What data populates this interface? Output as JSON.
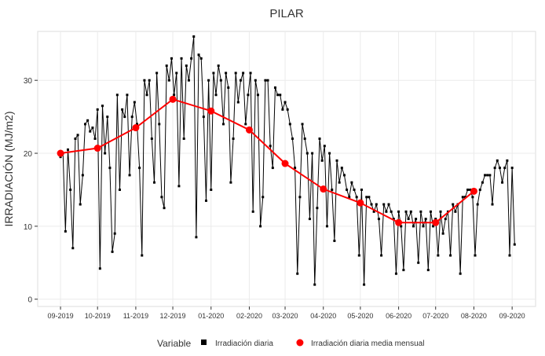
{
  "chart_data": {
    "type": "line",
    "title": "PILAR",
    "y_label": "IRRADIACIÓN (MJ/m2)",
    "legend_title": "Variable",
    "grid": true,
    "legend_position": "bottom",
    "xlim": [
      -18.5,
      385
    ],
    "ylim": [
      -1,
      36.7
    ],
    "xticks": [
      {
        "value": 0,
        "label": "09-2019"
      },
      {
        "value": 30,
        "label": "10-2019"
      },
      {
        "value": 61,
        "label": "11-2019"
      },
      {
        "value": 91,
        "label": "12-2019"
      },
      {
        "value": 122,
        "label": "01-2020"
      },
      {
        "value": 153,
        "label": "02-2020"
      },
      {
        "value": 182,
        "label": "03-2020"
      },
      {
        "value": 213,
        "label": "04-2020"
      },
      {
        "value": 243,
        "label": "05-2020"
      },
      {
        "value": 274,
        "label": "06-2020"
      },
      {
        "value": 304,
        "label": "07-2020"
      },
      {
        "value": 335,
        "label": "08-2020"
      },
      {
        "value": 366,
        "label": "09-2020"
      }
    ],
    "yticks": [
      0,
      10,
      20,
      30
    ],
    "series": [
      {
        "name": "Irradiación diaria",
        "color": "#000000",
        "marker": "square",
        "x": [
          0,
          2,
          4,
          6,
          8,
          10,
          12,
          14,
          16,
          18,
          20,
          22,
          24,
          26,
          28,
          30,
          32,
          34,
          36,
          38,
          40,
          42,
          44,
          46,
          48,
          50,
          52,
          54,
          56,
          58,
          60,
          62,
          64,
          66,
          68,
          70,
          72,
          74,
          76,
          78,
          80,
          82,
          84,
          86,
          88,
          90,
          92,
          94,
          96,
          98,
          100,
          102,
          104,
          106,
          108,
          110,
          112,
          114,
          116,
          118,
          120,
          122,
          124,
          126,
          128,
          130,
          132,
          134,
          136,
          138,
          140,
          142,
          144,
          146,
          148,
          150,
          152,
          154,
          156,
          158,
          160,
          162,
          164,
          166,
          168,
          170,
          172,
          174,
          176,
          178,
          180,
          182,
          184,
          186,
          188,
          190,
          192,
          194,
          196,
          198,
          200,
          202,
          204,
          206,
          208,
          210,
          212,
          214,
          216,
          218,
          220,
          222,
          224,
          226,
          228,
          230,
          232,
          234,
          236,
          238,
          240,
          242,
          244,
          246,
          248,
          250,
          252,
          254,
          256,
          258,
          260,
          262,
          264,
          266,
          268,
          270,
          272,
          274,
          276,
          278,
          280,
          282,
          284,
          286,
          288,
          290,
          292,
          294,
          296,
          298,
          300,
          302,
          304,
          306,
          308,
          310,
          312,
          314,
          316,
          318,
          320,
          322,
          324,
          326,
          328,
          330,
          332,
          334,
          336,
          338,
          340,
          342,
          344,
          346,
          348,
          350,
          352,
          354,
          356,
          358,
          360,
          362,
          364,
          366,
          368
        ],
        "values": [
          19.5,
          20,
          9.3,
          20.5,
          15,
          7,
          22,
          22.5,
          13,
          17,
          24,
          24.5,
          23,
          23.5,
          22,
          26,
          4.2,
          26.5,
          20,
          25,
          18,
          6.5,
          9,
          28,
          15,
          26,
          25,
          28,
          17,
          25,
          27,
          24,
          18,
          6,
          30,
          28,
          30,
          22,
          16,
          31,
          24,
          14,
          12.5,
          32,
          30,
          33,
          28,
          31,
          15.5,
          33,
          22,
          32,
          30,
          33,
          36,
          8.5,
          33.5,
          33,
          25,
          13.5,
          30,
          15,
          31,
          28,
          32,
          30,
          24,
          31,
          29,
          16,
          22,
          31,
          27,
          30,
          31,
          24,
          28,
          31,
          12,
          30,
          28,
          10,
          14,
          30,
          30,
          21,
          18,
          29,
          28,
          28,
          26,
          27,
          26,
          24,
          22,
          18,
          3.5,
          14,
          24,
          22,
          20,
          11,
          20,
          2,
          12.5,
          22,
          19,
          21,
          10,
          20,
          15,
          8,
          19,
          16,
          18,
          17,
          15,
          14,
          16,
          15,
          14,
          6,
          15,
          2,
          14,
          14,
          13,
          12,
          13,
          11,
          6,
          13,
          12,
          13,
          12,
          11,
          3.5,
          12,
          10,
          4,
          12,
          11,
          12,
          10,
          11,
          5,
          12,
          10,
          11,
          4,
          12,
          10,
          11,
          6,
          12,
          9,
          11,
          12,
          6,
          13,
          12,
          13,
          3.5,
          14,
          14,
          15,
          15,
          14,
          6,
          13,
          15,
          16,
          17,
          17,
          17,
          13,
          18,
          19,
          18,
          16,
          18,
          19,
          6,
          18,
          7.5
        ]
      },
      {
        "name": "Irradiación diaria media mensual",
        "color": "#ff0000",
        "marker": "circle",
        "x": [
          0,
          30,
          61,
          91,
          122,
          153,
          182,
          213,
          243,
          274,
          304,
          335
        ],
        "values": [
          20.0,
          20.7,
          23.5,
          27.4,
          25.8,
          23.2,
          18.6,
          15.1,
          13.2,
          10.5,
          10.5,
          14.8
        ]
      }
    ]
  }
}
